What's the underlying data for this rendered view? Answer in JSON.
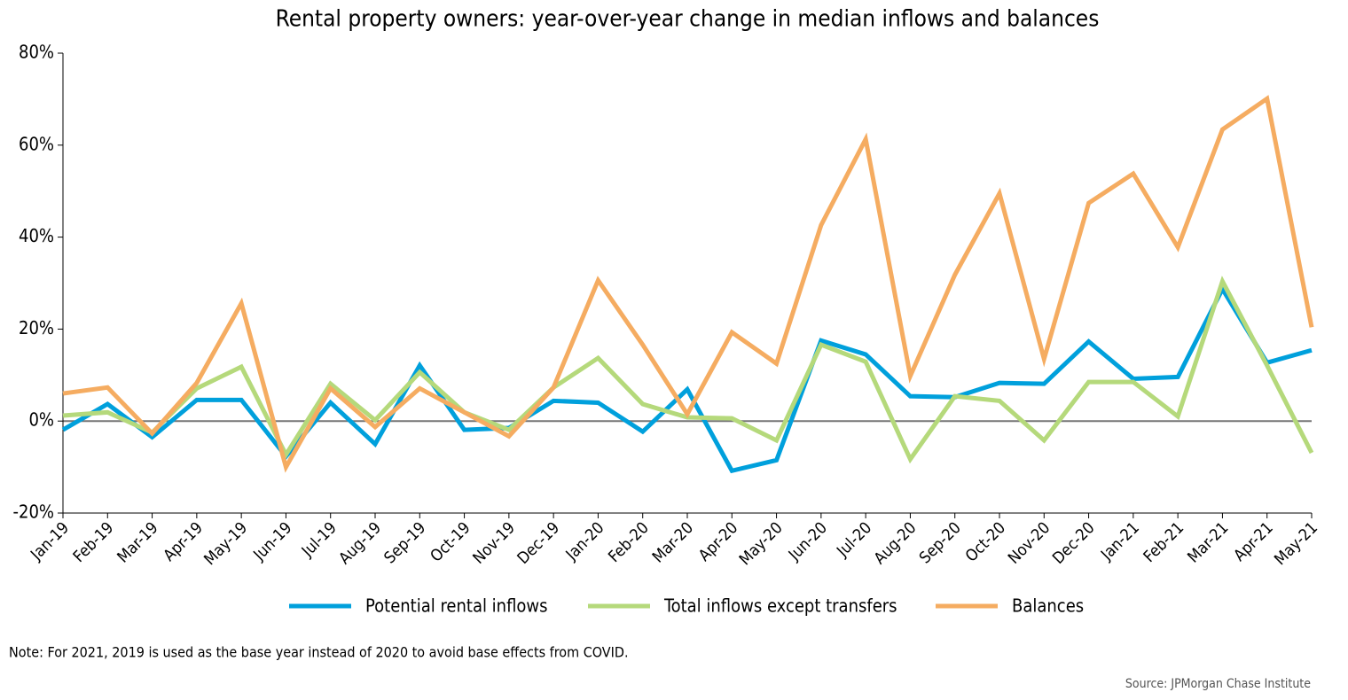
{
  "chart_data": {
    "type": "line",
    "title": "Rental property owners: year-over-year change in median inflows and balances",
    "categories": [
      "Jan-19",
      "Feb-19",
      "Mar-19",
      "Apr-19",
      "May-19",
      "Jun-19",
      "Jul-19",
      "Aug-19",
      "Sep-19",
      "Oct-19",
      "Nov-19",
      "Dec-19",
      "Jan-20",
      "Feb-20",
      "Mar-20",
      "Apr-20",
      "May-20",
      "Jun-20",
      "Jul-20",
      "Aug-20",
      "Sep-20",
      "Oct-20",
      "Nov-20",
      "Dec-20",
      "Jan-21",
      "Feb-21",
      "Mar-21",
      "Apr-21",
      "May-21"
    ],
    "series": [
      {
        "name": "Potential rental inflows",
        "color": "#00a0dc",
        "values": [
          -1.9,
          3.7,
          -3.5,
          4.6,
          4.6,
          -7.7,
          4.0,
          -5.0,
          12.1,
          -1.9,
          -1.5,
          4.4,
          4.0,
          -2.3,
          6.9,
          -10.8,
          -8.5,
          17.5,
          14.5,
          5.4,
          5.2,
          8.3,
          8.1,
          17.3,
          9.2,
          9.6,
          28.7,
          12.7,
          15.4
        ]
      },
      {
        "name": "Total inflows except transfers",
        "color": "#b5d97b",
        "values": [
          1.2,
          1.9,
          -2.5,
          7.1,
          11.8,
          -7.3,
          8.1,
          0.2,
          10.6,
          1.9,
          -1.9,
          7.3,
          13.7,
          3.7,
          0.8,
          0.6,
          -4.2,
          16.6,
          12.9,
          -8.3,
          5.4,
          4.4,
          -4.2,
          8.5,
          8.5,
          1.0,
          30.4,
          12.1,
          -6.9
        ]
      },
      {
        "name": "Balances",
        "color": "#f5ac61",
        "values": [
          6.0,
          7.3,
          -2.7,
          8.3,
          25.6,
          -10.0,
          7.1,
          -1.3,
          7.1,
          1.9,
          -3.3,
          7.3,
          30.6,
          16.6,
          1.5,
          19.3,
          12.5,
          42.6,
          61.3,
          9.8,
          31.8,
          49.5,
          13.5,
          47.4,
          53.8,
          37.8,
          63.4,
          70.1,
          20.4
        ]
      }
    ],
    "ylim": [
      -20,
      80
    ],
    "yticks": [
      {
        "value": -20,
        "label": "-20%"
      },
      {
        "value": 0,
        "label": "0%"
      },
      {
        "value": 20,
        "label": "20%"
      },
      {
        "value": 40,
        "label": "40%"
      },
      {
        "value": 60,
        "label": "60%"
      },
      {
        "value": 80,
        "label": "80%"
      }
    ],
    "zero_line": true,
    "legend": "bottom",
    "note": "Note: For 2021, 2019 is used as the base year instead of 2020 to avoid base effects from COVID.",
    "source": "Source: JPMorgan Chase Institute"
  }
}
